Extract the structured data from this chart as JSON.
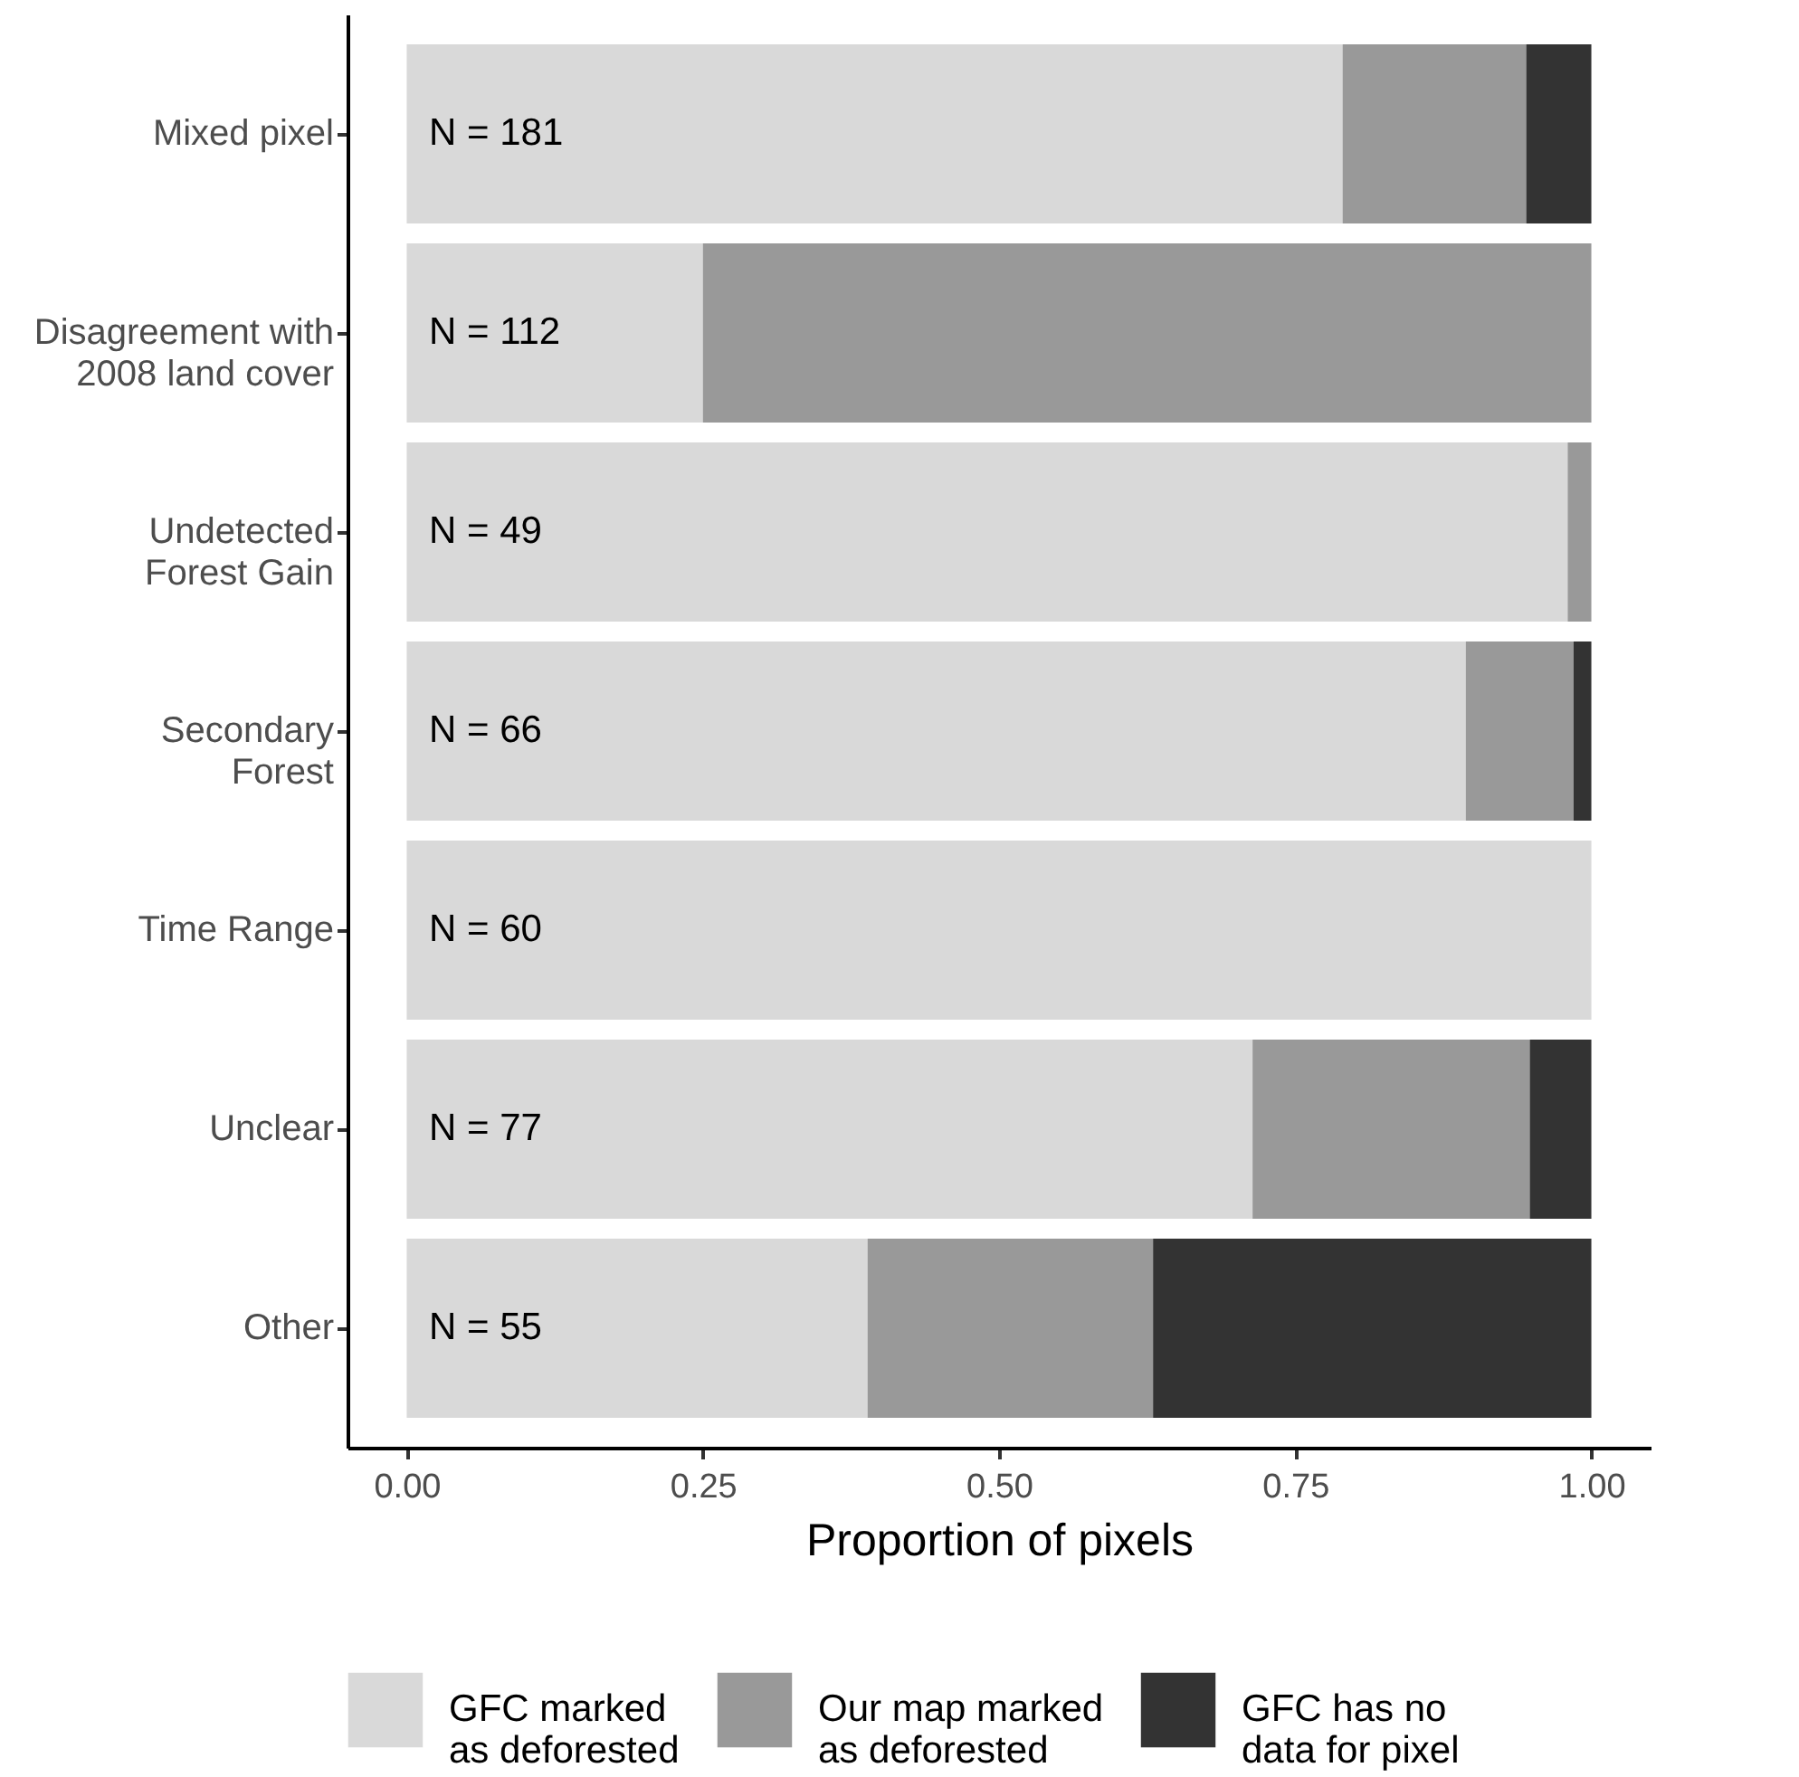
{
  "chart_data": {
    "type": "bar",
    "orientation": "horizontal",
    "stacked": true,
    "categories": [
      "Mixed pixel",
      "Disagreement with\n2008 land cover",
      "Undetected\nForest Gain",
      "Secondary\nForest",
      "Time Range",
      "Unclear",
      "Other"
    ],
    "series": [
      {
        "name": "GFC marked\nas deforested",
        "color": "#d9d9d9",
        "values": [
          0.79,
          0.25,
          0.98,
          0.894,
          1,
          0.714,
          0.389
        ]
      },
      {
        "name": "Our map marked\nas deforested",
        "color": "#999999",
        "values": [
          0.155,
          0.75,
          0.02,
          0.091,
          0,
          0.234,
          0.241
        ]
      },
      {
        "name": "GFC has no\ndata for pixel",
        "color": "#333333",
        "values": [
          0.055,
          0,
          0,
          0.015,
          0,
          0.052,
          0.37
        ]
      }
    ],
    "xlim": [
      -0.05,
      1.05
    ],
    "xticks": [
      {
        "value": 0,
        "label": "0.00"
      },
      {
        "value": 0.25,
        "label": "0.25"
      },
      {
        "value": 0.5,
        "label": "0.50"
      },
      {
        "value": 0.75,
        "label": "0.75"
      },
      {
        "value": 1,
        "label": "1.00"
      }
    ],
    "xlabel": "Proportion of pixels",
    "legend": "bottom",
    "grid": false,
    "annotations": [
      {
        "text": "N = 181",
        "y": "Mixed pixel"
      },
      {
        "text": "N = 112",
        "y": "Disagreement with\n2008 land cover"
      },
      {
        "text": "N = 49",
        "y": "Undetected\nForest Gain"
      },
      {
        "text": "N = 66",
        "y": "Secondary\nForest"
      },
      {
        "text": "N = 60",
        "y": "Time Range"
      },
      {
        "text": "N = 77",
        "y": "Unclear"
      },
      {
        "text": "N = 55",
        "y": "Other"
      }
    ]
  }
}
